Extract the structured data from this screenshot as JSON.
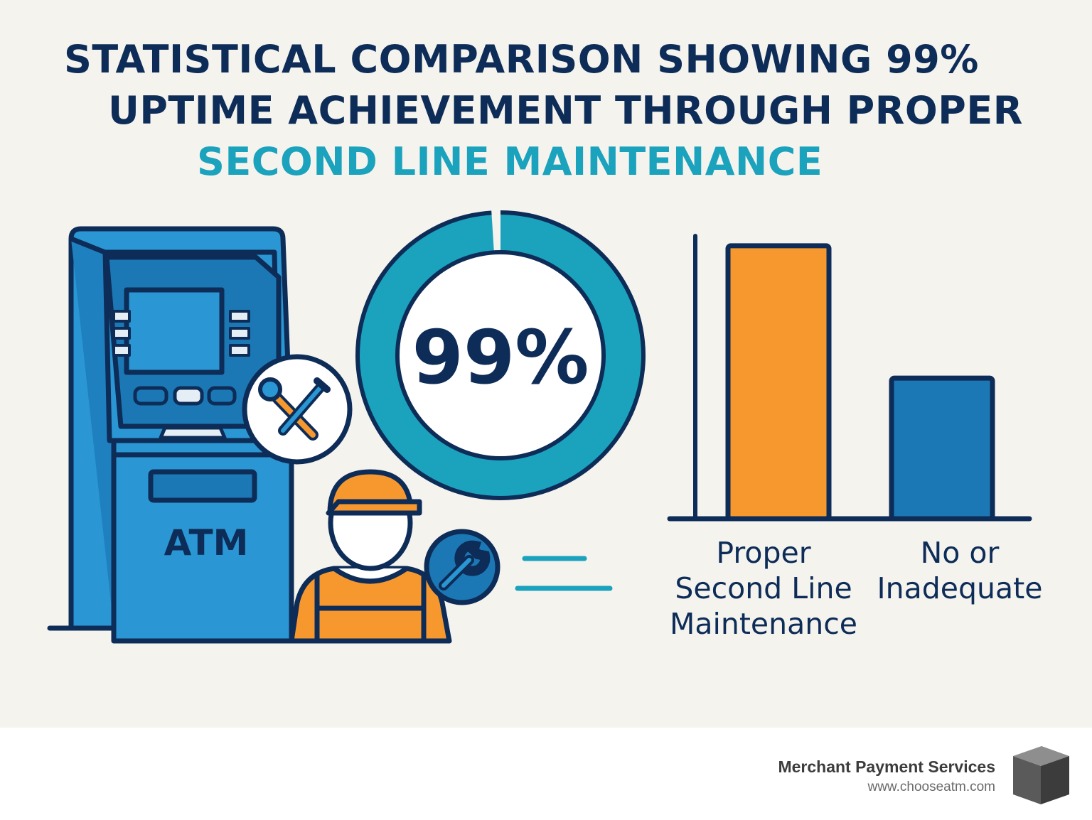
{
  "title": {
    "line1": "STATISTICAL COMPARISON SHOWING 99%",
    "line2": "UPTIME ACHIEVEMENT THROUGH PROPER",
    "line3": "SECOND LINE MAINTENANCE"
  },
  "atm": {
    "label": "ATM"
  },
  "uptime_gauge": {
    "value_label": "99%",
    "value": 0.99
  },
  "chart_data": {
    "type": "bar",
    "categories": [
      [
        "Proper",
        "Second Line",
        "Maintenance"
      ],
      [
        "No or",
        "Inadequate"
      ]
    ],
    "values": [
      99,
      51
    ],
    "ylim": [
      0,
      100
    ],
    "colors": [
      "#f7982f",
      "#1b78b4"
    ],
    "title": "",
    "xlabel": "",
    "ylabel": ""
  },
  "footer": {
    "brand_name": "Merchant Payment Services",
    "brand_url": "www.chooseatm.com"
  },
  "colors": {
    "navy": "#0d2c57",
    "teal": "#1ba2bd",
    "orange": "#f7982f",
    "blue": "#1b78b4",
    "atm_blue": "#2a96d3",
    "background": "#f5f3ee"
  }
}
